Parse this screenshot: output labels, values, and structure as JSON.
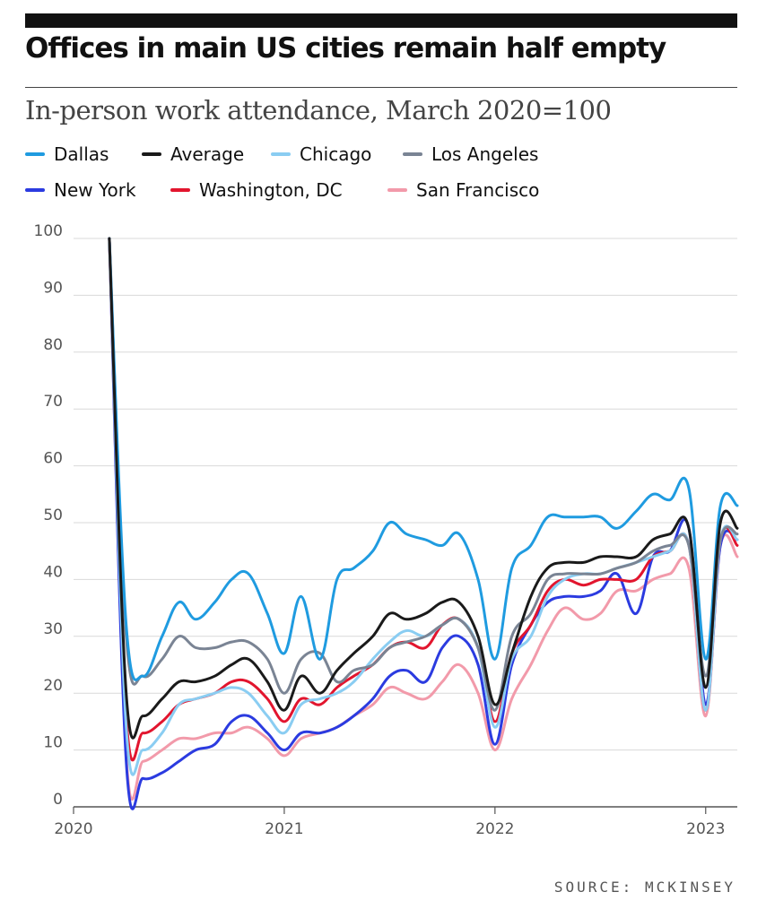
{
  "header": {
    "title": "Offices in main US cities remain half empty",
    "subtitle": "In-person work attendance, March 2020=100",
    "source": "SOURCE: MCKINSEY"
  },
  "chart_data": {
    "type": "line",
    "title": "Offices in main US cities remain half empty",
    "subtitle": "In-person work attendance, March 2020=100",
    "xlabel": "",
    "ylabel": "",
    "xlim": [
      2020.0,
      2023.15
    ],
    "ylim": [
      0,
      100
    ],
    "x_ticks": [
      2020,
      2021,
      2022,
      2023
    ],
    "x_tick_labels": [
      "2020",
      "2021",
      "2022",
      "2023"
    ],
    "y_ticks": [
      0,
      10,
      20,
      30,
      40,
      50,
      60,
      70,
      80,
      90,
      100
    ],
    "y_tick_labels": [
      "0",
      "10",
      "20",
      "30",
      "40",
      "50",
      "60",
      "70",
      "80",
      "90",
      "100"
    ],
    "grid": true,
    "legend_position": "top",
    "series": [
      {
        "name": "Dallas",
        "color": "#1f9be0",
        "x": [
          2020.17,
          2020.25,
          2020.33,
          2020.42,
          2020.5,
          2020.58,
          2020.67,
          2020.75,
          2020.83,
          2020.92,
          2021.0,
          2021.08,
          2021.17,
          2021.25,
          2021.33,
          2021.42,
          2021.5,
          2021.58,
          2021.67,
          2021.75,
          2021.83,
          2021.92,
          2022.0,
          2022.08,
          2022.17,
          2022.25,
          2022.33,
          2022.42,
          2022.5,
          2022.58,
          2022.67,
          2022.75,
          2022.83,
          2022.92,
          2023.0,
          2023.07,
          2023.15
        ],
        "values": [
          100,
          32,
          23,
          30,
          36,
          33,
          36,
          40,
          41,
          34,
          27,
          37,
          26,
          40,
          42,
          45,
          50,
          48,
          47,
          46,
          48,
          40,
          26,
          42,
          46,
          51,
          51,
          51,
          51,
          49,
          52,
          55,
          54,
          56,
          26,
          53,
          53
        ]
      },
      {
        "name": "Average",
        "color": "#1a1a1a",
        "x": [
          2020.17,
          2020.25,
          2020.33,
          2020.42,
          2020.5,
          2020.58,
          2020.67,
          2020.75,
          2020.83,
          2020.92,
          2021.0,
          2021.08,
          2021.17,
          2021.25,
          2021.33,
          2021.42,
          2021.5,
          2021.58,
          2021.67,
          2021.75,
          2021.83,
          2021.92,
          2022.0,
          2022.08,
          2022.17,
          2022.25,
          2022.33,
          2022.42,
          2022.5,
          2022.58,
          2022.67,
          2022.75,
          2022.83,
          2022.92,
          2023.0,
          2023.07,
          2023.15
        ],
        "values": [
          100,
          20,
          16,
          19,
          22,
          22,
          23,
          25,
          26,
          22,
          17,
          23,
          20,
          24,
          27,
          30,
          34,
          33,
          34,
          36,
          36,
          30,
          18,
          27,
          37,
          42,
          43,
          43,
          44,
          44,
          44,
          47,
          48,
          49,
          21,
          50,
          49
        ]
      },
      {
        "name": "Chicago",
        "color": "#8acdf2",
        "x": [
          2020.17,
          2020.25,
          2020.33,
          2020.42,
          2020.5,
          2020.58,
          2020.67,
          2020.75,
          2020.83,
          2020.92,
          2021.0,
          2021.08,
          2021.17,
          2021.25,
          2021.33,
          2021.42,
          2021.5,
          2021.58,
          2021.67,
          2021.75,
          2021.83,
          2021.92,
          2022.0,
          2022.08,
          2022.17,
          2022.25,
          2022.33,
          2022.42,
          2022.5,
          2022.58,
          2022.67,
          2022.75,
          2022.83,
          2022.92,
          2023.0,
          2023.07,
          2023.15
        ],
        "values": [
          100,
          14,
          10,
          13,
          18,
          19,
          20,
          21,
          20,
          16,
          13,
          18,
          19,
          20,
          22,
          26,
          29,
          31,
          30,
          32,
          33,
          28,
          14,
          26,
          30,
          37,
          40,
          41,
          41,
          42,
          43,
          44,
          45,
          46,
          17,
          47,
          47
        ]
      },
      {
        "name": "Los Angeles",
        "color": "#7a8494",
        "x": [
          2020.17,
          2020.25,
          2020.33,
          2020.42,
          2020.5,
          2020.58,
          2020.67,
          2020.75,
          2020.83,
          2020.92,
          2021.0,
          2021.08,
          2021.17,
          2021.25,
          2021.33,
          2021.42,
          2021.5,
          2021.58,
          2021.67,
          2021.75,
          2021.83,
          2021.92,
          2022.0,
          2022.08,
          2022.17,
          2022.25,
          2022.33,
          2022.42,
          2022.5,
          2022.58,
          2022.67,
          2022.75,
          2022.83,
          2022.92,
          2023.0,
          2023.07,
          2023.15
        ],
        "values": [
          100,
          30,
          23,
          26,
          30,
          28,
          28,
          29,
          29,
          26,
          20,
          26,
          27,
          22,
          24,
          25,
          28,
          29,
          30,
          32,
          33,
          28,
          17,
          30,
          34,
          40,
          41,
          41,
          41,
          42,
          43,
          45,
          46,
          46,
          23,
          47,
          48
        ]
      },
      {
        "name": "New York",
        "color": "#2b3be0",
        "x": [
          2020.17,
          2020.25,
          2020.33,
          2020.42,
          2020.5,
          2020.58,
          2020.67,
          2020.75,
          2020.83,
          2020.92,
          2021.0,
          2021.08,
          2021.17,
          2021.25,
          2021.33,
          2021.42,
          2021.5,
          2021.58,
          2021.67,
          2021.75,
          2021.83,
          2021.92,
          2022.0,
          2022.08,
          2022.17,
          2022.25,
          2022.33,
          2022.42,
          2022.5,
          2022.58,
          2022.67,
          2022.75,
          2022.83,
          2022.92,
          2023.0,
          2023.07,
          2023.15
        ],
        "values": [
          100,
          8,
          5,
          6,
          8,
          10,
          11,
          15,
          16,
          13,
          10,
          13,
          13,
          14,
          16,
          19,
          23,
          24,
          22,
          28,
          30,
          25,
          11,
          25,
          32,
          36,
          37,
          37,
          38,
          41,
          34,
          44,
          45,
          49,
          18,
          46,
          47
        ]
      },
      {
        "name": "Washington, DC",
        "color": "#e2152e",
        "x": [
          2020.17,
          2020.25,
          2020.33,
          2020.42,
          2020.5,
          2020.58,
          2020.67,
          2020.75,
          2020.83,
          2020.92,
          2021.0,
          2021.08,
          2021.17,
          2021.25,
          2021.33,
          2021.42,
          2021.5,
          2021.58,
          2021.67,
          2021.75,
          2021.83,
          2021.92,
          2022.0,
          2022.08,
          2022.17,
          2022.25,
          2022.33,
          2022.42,
          2022.5,
          2022.58,
          2022.67,
          2022.75,
          2022.83,
          2022.92,
          2023.0,
          2023.07,
          2023.15
        ],
        "values": [
          100,
          16,
          13,
          15,
          18,
          19,
          20,
          22,
          22,
          19,
          15,
          19,
          18,
          21,
          23,
          25,
          28,
          29,
          28,
          32,
          33,
          28,
          15,
          27,
          32,
          38,
          40,
          39,
          40,
          40,
          40,
          44,
          45,
          46,
          17,
          47,
          46
        ]
      },
      {
        "name": "San Francisco",
        "color": "#f29aaa",
        "x": [
          2020.17,
          2020.25,
          2020.33,
          2020.42,
          2020.5,
          2020.58,
          2020.67,
          2020.75,
          2020.83,
          2020.92,
          2021.0,
          2021.08,
          2021.17,
          2021.25,
          2021.33,
          2021.42,
          2021.5,
          2021.58,
          2021.67,
          2021.75,
          2021.83,
          2021.92,
          2022.0,
          2022.08,
          2022.17,
          2022.25,
          2022.33,
          2022.42,
          2022.5,
          2022.58,
          2022.67,
          2022.75,
          2022.83,
          2022.92,
          2023.0,
          2023.07,
          2023.15
        ],
        "values": [
          100,
          9,
          8,
          10,
          12,
          12,
          13,
          13,
          14,
          12,
          9,
          12,
          13,
          14,
          16,
          18,
          21,
          20,
          19,
          22,
          25,
          20,
          10,
          19,
          25,
          31,
          35,
          33,
          34,
          38,
          38,
          40,
          41,
          42,
          16,
          46,
          44
        ]
      }
    ]
  }
}
